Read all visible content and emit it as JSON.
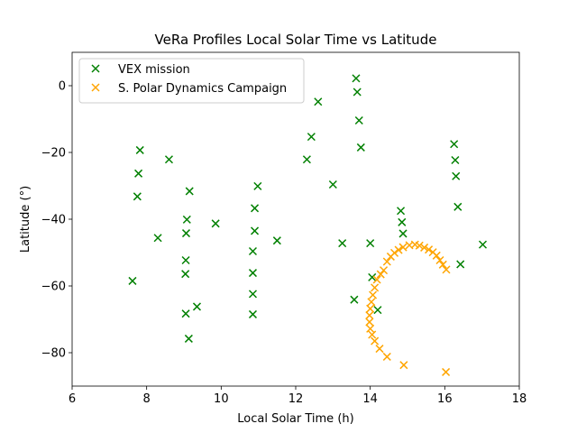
{
  "chart_data": {
    "type": "scatter",
    "title": "VeRa Profiles Local Solar Time vs Latitude",
    "xlabel": "Local Solar Time (h)",
    "ylabel": "Latitude (°)",
    "xlim": [
      6,
      18
    ],
    "ylim": [
      -90,
      10
    ],
    "xticks": [
      6,
      8,
      10,
      12,
      14,
      16,
      18
    ],
    "yticks": [
      0,
      -20,
      -40,
      -60,
      -80
    ],
    "xtick_labels": [
      "6",
      "8",
      "10",
      "12",
      "14",
      "16",
      "18"
    ],
    "ytick_labels": [
      "0",
      "−20",
      "−40",
      "−60",
      "−80"
    ],
    "grid": false,
    "legend": "upper-left",
    "marker": "x",
    "series": [
      {
        "name": "VEX mission",
        "color": "#008000",
        "points": [
          [
            7.82,
            -19.3
          ],
          [
            7.78,
            -26.3
          ],
          [
            7.75,
            -33.2
          ],
          [
            7.62,
            -58.5
          ],
          [
            8.6,
            -22.1
          ],
          [
            8.3,
            -45.6
          ],
          [
            9.15,
            -31.6
          ],
          [
            9.08,
            -40.1
          ],
          [
            9.06,
            -44.2
          ],
          [
            9.05,
            -52.3
          ],
          [
            9.04,
            -56.4
          ],
          [
            9.05,
            -68.3
          ],
          [
            9.13,
            -75.8
          ],
          [
            9.35,
            -66.2
          ],
          [
            9.85,
            -41.3
          ],
          [
            10.98,
            -30.1
          ],
          [
            10.9,
            -36.7
          ],
          [
            10.9,
            -43.5
          ],
          [
            10.85,
            -49.6
          ],
          [
            10.85,
            -56.1
          ],
          [
            10.85,
            -62.4
          ],
          [
            10.85,
            -68.5
          ],
          [
            11.5,
            -46.4
          ],
          [
            12.3,
            -22.1
          ],
          [
            12.42,
            -15.3
          ],
          [
            12.6,
            -4.8
          ],
          [
            13.0,
            -29.6
          ],
          [
            13.25,
            -47.2
          ],
          [
            13.57,
            -64.1
          ],
          [
            13.62,
            2.2
          ],
          [
            13.65,
            -1.9
          ],
          [
            13.7,
            -10.4
          ],
          [
            13.75,
            -18.5
          ],
          [
            14.0,
            -47.2
          ],
          [
            14.05,
            -57.4
          ],
          [
            14.2,
            -67.2
          ],
          [
            14.82,
            -37.5
          ],
          [
            14.85,
            -40.9
          ],
          [
            14.88,
            -44.3
          ],
          [
            16.25,
            -17.5
          ],
          [
            16.28,
            -22.3
          ],
          [
            16.3,
            -27.1
          ],
          [
            16.35,
            -36.3
          ],
          [
            16.42,
            -53.5
          ],
          [
            17.02,
            -47.6
          ]
        ]
      },
      {
        "name": "S. Polar Dynamics Campaign",
        "color": "#FFA500",
        "points": [
          [
            16.03,
            -85.8
          ],
          [
            14.9,
            -83.7
          ],
          [
            14.45,
            -81.2
          ],
          [
            14.25,
            -78.8
          ],
          [
            14.12,
            -76.5
          ],
          [
            14.05,
            -74.6
          ],
          [
            14.0,
            -72.8
          ],
          [
            13.98,
            -70.8
          ],
          [
            13.98,
            -68.8
          ],
          [
            14.0,
            -66.8
          ],
          [
            14.03,
            -64.8
          ],
          [
            14.07,
            -62.7
          ],
          [
            14.12,
            -60.5
          ],
          [
            14.18,
            -58.1
          ],
          [
            14.28,
            -56.5
          ],
          [
            14.36,
            -55.3
          ],
          [
            14.45,
            -52.7
          ],
          [
            14.55,
            -51.2
          ],
          [
            14.65,
            -50.1
          ],
          [
            14.76,
            -49.2
          ],
          [
            14.88,
            -48.4
          ],
          [
            15.05,
            -47.8
          ],
          [
            15.2,
            -47.6
          ],
          [
            15.32,
            -47.9
          ],
          [
            15.45,
            -48.5
          ],
          [
            15.57,
            -49.1
          ],
          [
            15.68,
            -49.9
          ],
          [
            15.78,
            -50.9
          ],
          [
            15.87,
            -52.3
          ],
          [
            15.95,
            -53.6
          ],
          [
            16.04,
            -55.1
          ]
        ]
      }
    ]
  }
}
